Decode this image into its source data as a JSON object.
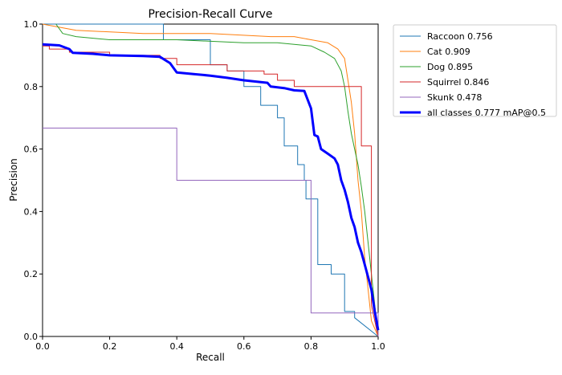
{
  "chart_data": {
    "type": "line",
    "title": "Precision-Recall Curve",
    "xlabel": "Recall",
    "ylabel": "Precision",
    "xlim": [
      0,
      1
    ],
    "ylim": [
      0,
      1
    ],
    "x_ticks": [
      "0.0",
      "0.2",
      "0.4",
      "0.6",
      "0.8",
      "1.0"
    ],
    "y_ticks": [
      "0.0",
      "0.2",
      "0.4",
      "0.6",
      "0.8",
      "1.0"
    ],
    "grid": false,
    "legend_position": "outside-right-top",
    "series": [
      {
        "name": "Raccoon 0.756",
        "color": "#1f77b4",
        "width": 1,
        "points": [
          [
            0,
            1.0
          ],
          [
            0.36,
            1.0
          ],
          [
            0.36,
            0.95
          ],
          [
            0.5,
            0.95
          ],
          [
            0.5,
            0.87
          ],
          [
            0.55,
            0.87
          ],
          [
            0.55,
            0.85
          ],
          [
            0.6,
            0.85
          ],
          [
            0.6,
            0.8
          ],
          [
            0.65,
            0.8
          ],
          [
            0.65,
            0.74
          ],
          [
            0.7,
            0.74
          ],
          [
            0.7,
            0.7
          ],
          [
            0.72,
            0.7
          ],
          [
            0.72,
            0.61
          ],
          [
            0.76,
            0.61
          ],
          [
            0.76,
            0.55
          ],
          [
            0.78,
            0.55
          ],
          [
            0.78,
            0.5
          ],
          [
            0.785,
            0.5
          ],
          [
            0.785,
            0.44
          ],
          [
            0.82,
            0.44
          ],
          [
            0.82,
            0.23
          ],
          [
            0.86,
            0.23
          ],
          [
            0.86,
            0.2
          ],
          [
            0.9,
            0.2
          ],
          [
            0.9,
            0.08
          ],
          [
            0.93,
            0.08
          ],
          [
            0.93,
            0.06
          ],
          [
            1.0,
            0.0
          ]
        ]
      },
      {
        "name": "Cat 0.909",
        "color": "#ff7f0e",
        "width": 1,
        "points": [
          [
            0,
            1.0
          ],
          [
            0.1,
            0.98
          ],
          [
            0.3,
            0.97
          ],
          [
            0.5,
            0.97
          ],
          [
            0.68,
            0.96
          ],
          [
            0.75,
            0.96
          ],
          [
            0.8,
            0.95
          ],
          [
            0.85,
            0.94
          ],
          [
            0.88,
            0.92
          ],
          [
            0.9,
            0.89
          ],
          [
            0.91,
            0.82
          ],
          [
            0.92,
            0.75
          ],
          [
            0.93,
            0.65
          ],
          [
            0.94,
            0.5
          ],
          [
            0.95,
            0.4
          ],
          [
            0.96,
            0.25
          ],
          [
            0.97,
            0.15
          ],
          [
            0.98,
            0.05
          ],
          [
            1.0,
            0.0
          ]
        ]
      },
      {
        "name": "Dog 0.895",
        "color": "#2ca02c",
        "width": 1,
        "points": [
          [
            0.04,
            1.0
          ],
          [
            0.06,
            0.97
          ],
          [
            0.1,
            0.96
          ],
          [
            0.2,
            0.95
          ],
          [
            0.4,
            0.95
          ],
          [
            0.6,
            0.94
          ],
          [
            0.7,
            0.94
          ],
          [
            0.8,
            0.93
          ],
          [
            0.84,
            0.91
          ],
          [
            0.87,
            0.89
          ],
          [
            0.89,
            0.85
          ],
          [
            0.9,
            0.8
          ],
          [
            0.91,
            0.72
          ],
          [
            0.92,
            0.65
          ],
          [
            0.93,
            0.6
          ],
          [
            0.94,
            0.55
          ],
          [
            0.95,
            0.48
          ],
          [
            0.96,
            0.4
          ],
          [
            0.97,
            0.3
          ],
          [
            0.98,
            0.2
          ],
          [
            0.99,
            0.1
          ],
          [
            1.0,
            0.0
          ]
        ]
      },
      {
        "name": "Squirrel 0.846",
        "color": "#d62728",
        "width": 1,
        "points": [
          [
            0,
            0.93
          ],
          [
            0.02,
            0.93
          ],
          [
            0.02,
            0.92
          ],
          [
            0.08,
            0.92
          ],
          [
            0.08,
            0.91
          ],
          [
            0.2,
            0.91
          ],
          [
            0.2,
            0.9
          ],
          [
            0.35,
            0.9
          ],
          [
            0.35,
            0.89
          ],
          [
            0.4,
            0.89
          ],
          [
            0.4,
            0.87
          ],
          [
            0.55,
            0.87
          ],
          [
            0.55,
            0.85
          ],
          [
            0.66,
            0.85
          ],
          [
            0.66,
            0.84
          ],
          [
            0.7,
            0.84
          ],
          [
            0.7,
            0.82
          ],
          [
            0.75,
            0.82
          ],
          [
            0.75,
            0.8
          ],
          [
            0.85,
            0.8
          ],
          [
            0.85,
            0.8
          ],
          [
            0.95,
            0.8
          ],
          [
            0.95,
            0.61
          ],
          [
            0.98,
            0.61
          ],
          [
            0.98,
            0.1
          ],
          [
            1.0,
            0.0
          ]
        ]
      },
      {
        "name": "Skunk 0.478",
        "color": "#9467bd",
        "width": 1,
        "points": [
          [
            0,
            0.667
          ],
          [
            0.4,
            0.667
          ],
          [
            0.4,
            0.5
          ],
          [
            0.8,
            0.5
          ],
          [
            0.8,
            0.075
          ],
          [
            1.0,
            0.075
          ],
          [
            1.0,
            0.0
          ]
        ]
      },
      {
        "name": "all classes 0.777 mAP@0.5",
        "color": "#0000ff",
        "width": 3,
        "points": [
          [
            0,
            0.935
          ],
          [
            0.05,
            0.932
          ],
          [
            0.08,
            0.92
          ],
          [
            0.09,
            0.908
          ],
          [
            0.15,
            0.905
          ],
          [
            0.2,
            0.9
          ],
          [
            0.3,
            0.898
          ],
          [
            0.35,
            0.895
          ],
          [
            0.38,
            0.875
          ],
          [
            0.4,
            0.845
          ],
          [
            0.45,
            0.84
          ],
          [
            0.5,
            0.835
          ],
          [
            0.55,
            0.828
          ],
          [
            0.6,
            0.82
          ],
          [
            0.67,
            0.812
          ],
          [
            0.68,
            0.8
          ],
          [
            0.72,
            0.795
          ],
          [
            0.75,
            0.788
          ],
          [
            0.78,
            0.786
          ],
          [
            0.8,
            0.73
          ],
          [
            0.81,
            0.645
          ],
          [
            0.82,
            0.64
          ],
          [
            0.83,
            0.6
          ],
          [
            0.85,
            0.585
          ],
          [
            0.87,
            0.57
          ],
          [
            0.88,
            0.55
          ],
          [
            0.89,
            0.5
          ],
          [
            0.9,
            0.47
          ],
          [
            0.91,
            0.43
          ],
          [
            0.92,
            0.38
          ],
          [
            0.93,
            0.35
          ],
          [
            0.94,
            0.3
          ],
          [
            0.95,
            0.27
          ],
          [
            0.96,
            0.23
          ],
          [
            0.97,
            0.19
          ],
          [
            0.98,
            0.15
          ],
          [
            0.99,
            0.08
          ],
          [
            1.0,
            0.02
          ]
        ]
      }
    ]
  }
}
